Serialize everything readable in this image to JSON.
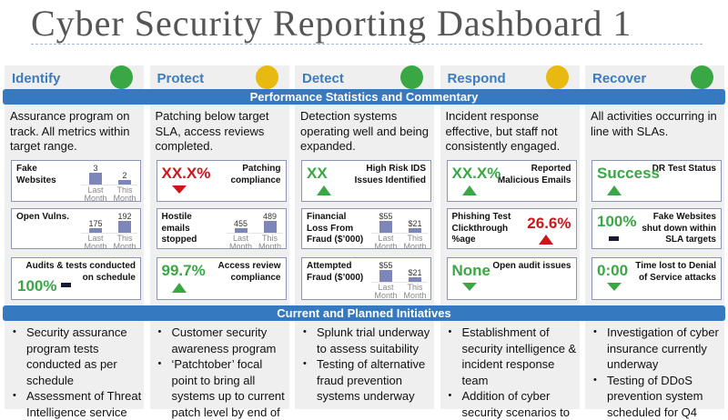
{
  "title": "Cyber Security Reporting Dashboard 1",
  "bands": {
    "performance": "Performance Statistics and Commentary",
    "initiatives": "Current and Planned Initiatives"
  },
  "colors": {
    "green": "#3aa745",
    "amber": "#e8b910",
    "red": "#d0141a",
    "band": "#3579c1",
    "header_text": "#3d7cc0",
    "bar": "#7d86b8",
    "neutral": "#141a3a"
  },
  "columns": [
    {
      "label": "Identify",
      "status": "green",
      "commentary": "Assurance program on track.  All metrics within target range.",
      "metrics": [
        {
          "kind": "bars",
          "label": "Fake Websites",
          "bars": [
            {
              "category": "Last Month",
              "value": 3,
              "value_label": "3"
            },
            {
              "category": "This Month",
              "value": 2,
              "value_label": "2"
            }
          ]
        },
        {
          "kind": "bars",
          "label": "Open Vulns.",
          "bars": [
            {
              "category": "Last Month",
              "value": 175,
              "value_label": "175"
            },
            {
              "category": "This Month",
              "value": 192,
              "value_label": "192"
            }
          ]
        },
        {
          "kind": "kpi-stacked",
          "label": "Audits & tests conducted on schedule",
          "value": "100%",
          "value_color": "green",
          "indicator": "flat",
          "indicator_color": "neutral"
        }
      ],
      "initiatives": [
        "Security assurance program tests conducted as per schedule",
        "Assessment of Threat Intelligence service"
      ]
    },
    {
      "label": "Protect",
      "status": "amber",
      "commentary": "Patching below target SLA, access reviews completed.",
      "metrics": [
        {
          "kind": "kpi",
          "label": "Patching compliance",
          "value": "XX.X%",
          "value_color": "red",
          "indicator": "down",
          "indicator_color": "red"
        },
        {
          "kind": "bars",
          "label": "Hostile emails stopped",
          "bars": [
            {
              "category": "Last Month",
              "value": 455,
              "value_label": "455"
            },
            {
              "category": "This Month",
              "value": 489,
              "value_label": "489"
            }
          ]
        },
        {
          "kind": "kpi",
          "label": "Access review compliance",
          "value": "99.7%",
          "value_color": "green",
          "indicator": "up",
          "indicator_color": "green"
        }
      ],
      "initiatives": [
        "Customer security awareness program",
        "‘Patchtober’ focal point to bring all systems up to current patch level by end of"
      ]
    },
    {
      "label": "Detect",
      "status": "green",
      "commentary": "Detection systems operating well and being expanded.",
      "metrics": [
        {
          "kind": "kpi",
          "label": "High Risk IDS Issues Identified",
          "value": "XX",
          "value_color": "green",
          "indicator": "up",
          "indicator_color": "green"
        },
        {
          "kind": "bars",
          "label": "Financial Loss From Fraud ($’000)",
          "bars": [
            {
              "category": "Last Month",
              "value": 55,
              "value_label": "$55"
            },
            {
              "category": "This Month",
              "value": 21,
              "value_label": "$21"
            }
          ]
        },
        {
          "kind": "bars",
          "label": "Attempted Fraud ($’000)",
          "bars": [
            {
              "category": "Last Month",
              "value": 55,
              "value_label": "$55"
            },
            {
              "category": "This Month",
              "value": 21,
              "value_label": "$21"
            }
          ]
        }
      ],
      "initiatives": [
        "Splunk trial underway to assess suitability",
        "Testing of alternative fraud prevention systems underway"
      ]
    },
    {
      "label": "Respond",
      "status": "amber",
      "commentary": "Incident response effective, but staff not consistently engaged.",
      "metrics": [
        {
          "kind": "kpi",
          "label": "Reported Malicious Emails",
          "value": "XX.X%",
          "value_color": "green",
          "indicator": "up",
          "indicator_color": "green"
        },
        {
          "kind": "kpi-reverse",
          "label": "Phishing Test Clickthrough %age",
          "value": "26.6%",
          "value_color": "red",
          "indicator": "up",
          "indicator_color": "red"
        },
        {
          "kind": "kpi",
          "label": "Open audit issues",
          "value": "None",
          "value_color": "green",
          "indicator": "down",
          "indicator_color": "green"
        }
      ],
      "initiatives": [
        "Establishment of security intelligence & incident response team",
        "Addition of cyber security scenarios to"
      ]
    },
    {
      "label": "Recover",
      "status": "green",
      "commentary": "All activities occurring in line with SLAs.",
      "metrics": [
        {
          "kind": "kpi",
          "label": "DR Test Status",
          "value": "Success",
          "value_color": "green",
          "indicator": "up",
          "indicator_color": "green"
        },
        {
          "kind": "kpi",
          "label": "Fake Websites shut down within SLA targets",
          "value": "100%",
          "value_color": "green",
          "indicator": "flat",
          "indicator_color": "neutral"
        },
        {
          "kind": "kpi",
          "label": "Time lost to Denial of Service attacks",
          "value": "0:00",
          "value_color": "green",
          "indicator": "down",
          "indicator_color": "green"
        }
      ],
      "initiatives": [
        "Investigation of cyber insurance currently underway",
        "Testing of DDoS prevention system scheduled for Q4"
      ]
    }
  ]
}
